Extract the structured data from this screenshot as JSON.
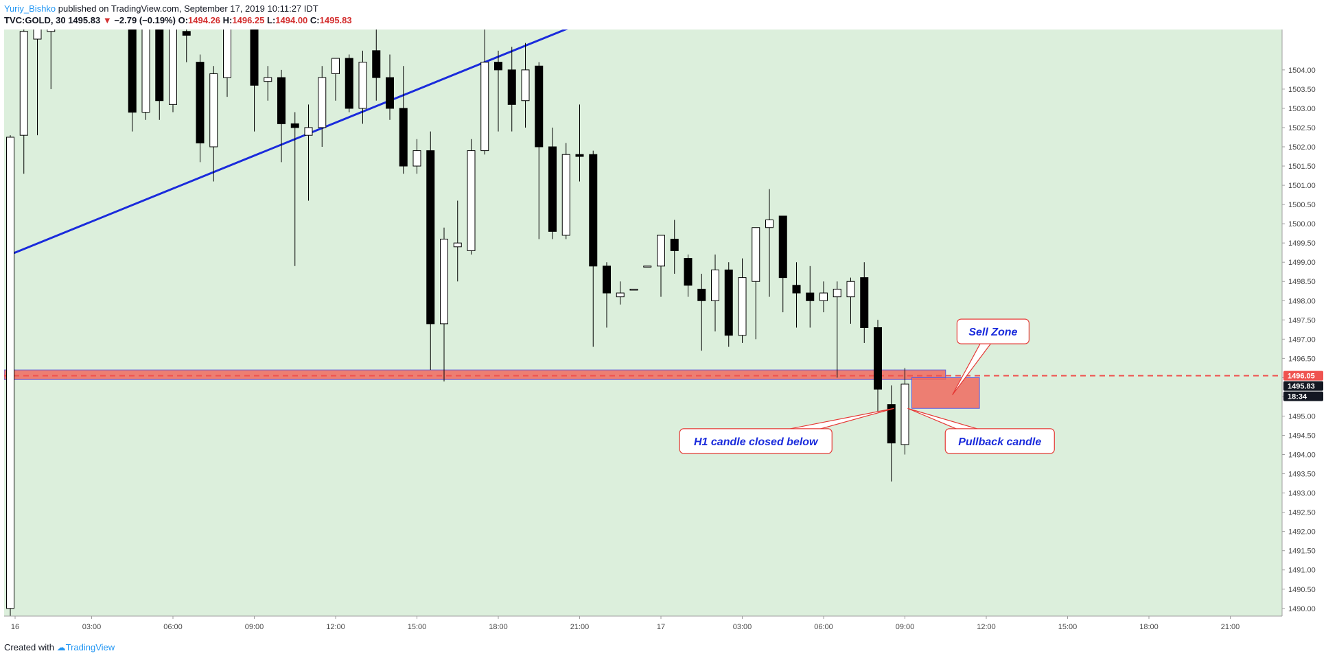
{
  "header": {
    "author": "Yuriy_Bishko",
    "published_text": "published on TradingView.com, September 17, 2019 10:11:27 IDT",
    "symbol": "TVC:GOLD, 30",
    "last": "1495.83",
    "arrow": "▼",
    "change": "−2.79 (−0.19%)",
    "o_label": "O:",
    "o_val": "1494.26",
    "h_label": "H:",
    "h_val": "1496.25",
    "l_label": "L:",
    "l_val": "1494.00",
    "c_label": "C:",
    "c_val": "1495.83"
  },
  "footer": {
    "created_with": "Created with",
    "brand": "TradingView"
  },
  "colors": {
    "background": "#dcefdc",
    "candle_up": "#ffffff",
    "candle_down": "#000000",
    "trendline": "#1a2bdc",
    "zone": "#f06a5f",
    "price_tag_red": "#ef5350",
    "price_tag_black": "#131722",
    "callout_text": "#1a2bdc"
  },
  "chart_data": {
    "type": "candlestick",
    "interval": "30",
    "ylim": [
      1489.8,
      1505.05
    ],
    "y_ticks": [
      "1490.00",
      "1490.50",
      "1491.00",
      "1491.50",
      "1492.00",
      "1492.50",
      "1493.00",
      "1493.50",
      "1494.00",
      "1494.50",
      "1495.00",
      "1495.50",
      "1496.00",
      "1496.50",
      "1497.00",
      "1497.50",
      "1498.00",
      "1498.50",
      "1499.00",
      "1499.50",
      "1500.00",
      "1500.50",
      "1501.00",
      "1501.50",
      "1502.00",
      "1502.50",
      "1503.00",
      "1503.50",
      "1504.00"
    ],
    "x_ticks": [
      {
        "label": "16",
        "bar": 0
      },
      {
        "label": "03:00",
        "bar": 6
      },
      {
        "label": "06:00",
        "bar": 12
      },
      {
        "label": "09:00",
        "bar": 18
      },
      {
        "label": "12:00",
        "bar": 24
      },
      {
        "label": "15:00",
        "bar": 30
      },
      {
        "label": "18:00",
        "bar": 36
      },
      {
        "label": "21:00",
        "bar": 42
      },
      {
        "label": "17",
        "bar": 48
      },
      {
        "label": "03:00",
        "bar": 54
      },
      {
        "label": "06:00",
        "bar": 60
      },
      {
        "label": "09:00",
        "bar": 66
      },
      {
        "label": "12:00",
        "bar": 72
      },
      {
        "label": "15:00",
        "bar": 78
      },
      {
        "label": "18:00",
        "bar": 84
      },
      {
        "label": "21:00",
        "bar": 90
      }
    ],
    "candles": [
      {
        "bar": 0,
        "o": 1490.0,
        "h": 1502.3,
        "l": 1489.8,
        "c": 1502.25
      },
      {
        "bar": 1,
        "o": 1502.3,
        "h": 1505.2,
        "l": 1501.3,
        "c": 1505.0
      },
      {
        "bar": 2,
        "o": 1504.8,
        "h": 1505.4,
        "l": 1502.3,
        "c": 1505.1
      },
      {
        "bar": 3,
        "o": 1505.0,
        "h": 1505.3,
        "l": 1503.5,
        "c": 1505.1
      },
      {
        "bar": 9,
        "o": 1505.3,
        "h": 1505.6,
        "l": 1502.4,
        "c": 1502.9
      },
      {
        "bar": 10,
        "o": 1502.9,
        "h": 1505.4,
        "l": 1502.7,
        "c": 1505.1
      },
      {
        "bar": 11,
        "o": 1505.2,
        "h": 1505.5,
        "l": 1502.7,
        "c": 1503.2
      },
      {
        "bar": 12,
        "o": 1503.1,
        "h": 1505.4,
        "l": 1502.9,
        "c": 1505.2
      },
      {
        "bar": 13,
        "o": 1505.0,
        "h": 1505.4,
        "l": 1504.2,
        "c": 1504.9
      },
      {
        "bar": 14,
        "o": 1504.2,
        "h": 1504.4,
        "l": 1501.6,
        "c": 1502.1
      },
      {
        "bar": 15,
        "o": 1502.0,
        "h": 1504.1,
        "l": 1501.1,
        "c": 1503.9
      },
      {
        "bar": 16,
        "o": 1503.8,
        "h": 1505.4,
        "l": 1503.3,
        "c": 1505.1
      },
      {
        "bar": 18,
        "o": 1505.1,
        "h": 1505.3,
        "l": 1502.4,
        "c": 1503.6
      },
      {
        "bar": 19,
        "o": 1503.7,
        "h": 1504.1,
        "l": 1503.2,
        "c": 1503.8
      },
      {
        "bar": 20,
        "o": 1503.8,
        "h": 1504.0,
        "l": 1501.6,
        "c": 1502.6
      },
      {
        "bar": 21,
        "o": 1502.6,
        "h": 1502.9,
        "l": 1498.9,
        "c": 1502.5
      },
      {
        "bar": 22,
        "o": 1502.3,
        "h": 1503.1,
        "l": 1500.6,
        "c": 1502.5
      },
      {
        "bar": 23,
        "o": 1502.5,
        "h": 1504.1,
        "l": 1502.0,
        "c": 1503.8
      },
      {
        "bar": 24,
        "o": 1503.9,
        "h": 1504.3,
        "l": 1503.2,
        "c": 1504.3
      },
      {
        "bar": 25,
        "o": 1504.3,
        "h": 1504.4,
        "l": 1502.9,
        "c": 1503.0
      },
      {
        "bar": 26,
        "o": 1503.0,
        "h": 1504.5,
        "l": 1502.6,
        "c": 1504.2
      },
      {
        "bar": 27,
        "o": 1504.5,
        "h": 1505.2,
        "l": 1503.2,
        "c": 1503.8
      },
      {
        "bar": 28,
        "o": 1503.8,
        "h": 1504.4,
        "l": 1502.7,
        "c": 1503.0
      },
      {
        "bar": 29,
        "o": 1503.0,
        "h": 1504.1,
        "l": 1501.3,
        "c": 1501.5
      },
      {
        "bar": 30,
        "o": 1501.5,
        "h": 1502.2,
        "l": 1501.3,
        "c": 1501.9
      },
      {
        "bar": 31,
        "o": 1501.9,
        "h": 1502.4,
        "l": 1496.2,
        "c": 1497.4
      },
      {
        "bar": 32,
        "o": 1497.4,
        "h": 1499.9,
        "l": 1495.9,
        "c": 1499.6
      },
      {
        "bar": 33,
        "o": 1499.4,
        "h": 1500.6,
        "l": 1498.5,
        "c": 1499.5
      },
      {
        "bar": 34,
        "o": 1499.3,
        "h": 1502.2,
        "l": 1499.2,
        "c": 1501.9
      },
      {
        "bar": 35,
        "o": 1501.9,
        "h": 1505.2,
        "l": 1501.8,
        "c": 1504.2
      },
      {
        "bar": 36,
        "o": 1504.2,
        "h": 1504.5,
        "l": 1502.4,
        "c": 1504.0
      },
      {
        "bar": 37,
        "o": 1504.0,
        "h": 1504.6,
        "l": 1502.4,
        "c": 1503.1
      },
      {
        "bar": 38,
        "o": 1503.2,
        "h": 1504.7,
        "l": 1502.5,
        "c": 1504.0
      },
      {
        "bar": 39,
        "o": 1504.1,
        "h": 1504.2,
        "l": 1499.6,
        "c": 1502.0
      },
      {
        "bar": 40,
        "o": 1502.0,
        "h": 1502.5,
        "l": 1499.6,
        "c": 1499.8
      },
      {
        "bar": 41,
        "o": 1499.7,
        "h": 1502.1,
        "l": 1499.6,
        "c": 1501.8
      },
      {
        "bar": 42,
        "o": 1501.8,
        "h": 1503.1,
        "l": 1501.1,
        "c": 1501.75
      },
      {
        "bar": 43,
        "o": 1501.8,
        "h": 1501.9,
        "l": 1496.8,
        "c": 1498.9
      },
      {
        "bar": 44,
        "o": 1498.9,
        "h": 1499.0,
        "l": 1497.3,
        "c": 1498.2
      },
      {
        "bar": 45,
        "o": 1498.1,
        "h": 1498.5,
        "l": 1497.9,
        "c": 1498.2
      },
      {
        "bar": 46,
        "o": 1498.3,
        "h": 1498.3,
        "l": 1498.3,
        "c": 1498.3
      },
      {
        "bar": 47,
        "o": 1498.9,
        "h": 1498.9,
        "l": 1498.9,
        "c": 1498.9
      },
      {
        "bar": 48,
        "o": 1498.9,
        "h": 1499.7,
        "l": 1498.1,
        "c": 1499.7
      },
      {
        "bar": 49,
        "o": 1499.6,
        "h": 1500.1,
        "l": 1498.7,
        "c": 1499.3
      },
      {
        "bar": 50,
        "o": 1499.1,
        "h": 1499.2,
        "l": 1498.1,
        "c": 1498.4
      },
      {
        "bar": 51,
        "o": 1498.3,
        "h": 1498.7,
        "l": 1496.7,
        "c": 1498.0
      },
      {
        "bar": 52,
        "o": 1498.0,
        "h": 1499.2,
        "l": 1497.2,
        "c": 1498.8
      },
      {
        "bar": 53,
        "o": 1498.8,
        "h": 1499.0,
        "l": 1496.8,
        "c": 1497.1
      },
      {
        "bar": 54,
        "o": 1497.1,
        "h": 1499.1,
        "l": 1496.9,
        "c": 1498.6
      },
      {
        "bar": 55,
        "o": 1498.5,
        "h": 1499.9,
        "l": 1497.0,
        "c": 1499.9
      },
      {
        "bar": 56,
        "o": 1499.9,
        "h": 1500.9,
        "l": 1498.1,
        "c": 1500.1
      },
      {
        "bar": 57,
        "o": 1500.2,
        "h": 1500.2,
        "l": 1497.7,
        "c": 1498.6
      },
      {
        "bar": 58,
        "o": 1498.4,
        "h": 1499.0,
        "l": 1497.3,
        "c": 1498.2
      },
      {
        "bar": 59,
        "o": 1498.2,
        "h": 1498.9,
        "l": 1497.3,
        "c": 1498.0
      },
      {
        "bar": 60,
        "o": 1498.0,
        "h": 1498.5,
        "l": 1497.7,
        "c": 1498.2
      },
      {
        "bar": 61,
        "o": 1498.1,
        "h": 1498.5,
        "l": 1496.0,
        "c": 1498.3
      },
      {
        "bar": 62,
        "o": 1498.1,
        "h": 1498.6,
        "l": 1497.4,
        "c": 1498.5
      },
      {
        "bar": 63,
        "o": 1498.6,
        "h": 1499.0,
        "l": 1496.9,
        "c": 1497.3
      },
      {
        "bar": 64,
        "o": 1497.3,
        "h": 1497.5,
        "l": 1495.1,
        "c": 1495.7
      },
      {
        "bar": 65,
        "o": 1495.3,
        "h": 1495.8,
        "l": 1493.3,
        "c": 1494.3
      },
      {
        "bar": 66,
        "o": 1494.26,
        "h": 1496.25,
        "l": 1494.0,
        "c": 1495.83
      }
    ],
    "trendline": {
      "start": {
        "bar": 0,
        "price": 1499.2
      },
      "end": {
        "bar": 49,
        "price": 1506.2
      }
    },
    "support_band": {
      "top": 1496.2,
      "bottom": 1495.95,
      "to_bar": 69
    },
    "sell_zone_box": {
      "bar_from": 66.5,
      "bar_to": 71.5,
      "top": 1496.0,
      "bottom": 1495.2
    },
    "price_line": 1496.05,
    "price_tags": [
      {
        "value": "1496.05",
        "price": 1496.05,
        "kind": "red"
      },
      {
        "value": "1495.83",
        "price": 1495.83,
        "kind": "black"
      },
      {
        "value": "18:34",
        "price": 1495.53,
        "kind": "black"
      }
    ],
    "annotations": [
      {
        "text": "Sell Zone",
        "box_bar": 72.5,
        "box_price": 1497.2,
        "tip_bar": 69.5,
        "tip_price": 1495.55
      },
      {
        "text": "H1 candle closed below",
        "box_bar": 55,
        "box_price": 1494.35,
        "tip_bar": 65.2,
        "tip_price": 1495.2
      },
      {
        "text": "Pullback candle",
        "box_bar": 73,
        "box_price": 1494.35,
        "tip_bar": 66.2,
        "tip_price": 1495.2
      }
    ]
  }
}
